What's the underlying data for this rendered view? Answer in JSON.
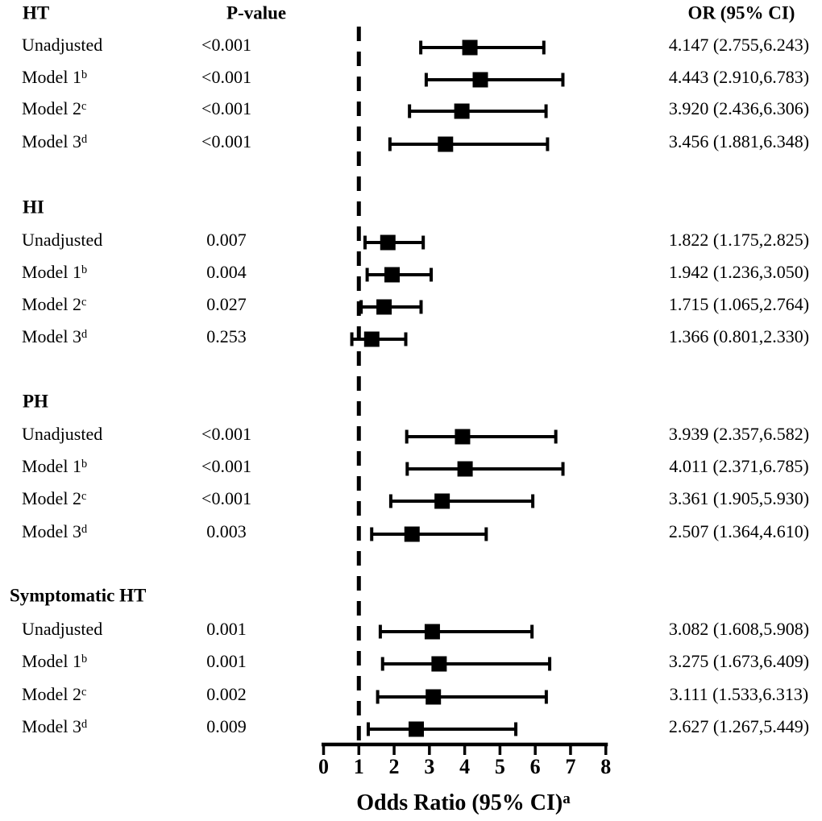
{
  "chart_data": {
    "type": "forest",
    "title": "",
    "columns": {
      "pvalue": "P-value",
      "or": "OR (95% CI)"
    },
    "xlabel": "Odds Ratio (95% CI)",
    "xlabel_sup": "a",
    "x_ticks": [
      "0",
      "1",
      "2",
      "3",
      "4",
      "5",
      "6",
      "7",
      "8"
    ],
    "xlim": [
      0,
      8
    ],
    "reference_line": 1,
    "colors": {
      "foreground": "#000000",
      "background": "#ffffff"
    },
    "sections": [
      {
        "name": "HT",
        "rows": [
          {
            "label": "Unadjusted",
            "sup": "",
            "p": "<0.001",
            "or": 4.147,
            "ci_low": 2.755,
            "ci_high": 6.243,
            "or_text": "4.147 (2.755,6.243)"
          },
          {
            "label": "Model 1",
            "sup": "b",
            "p": "<0.001",
            "or": 4.443,
            "ci_low": 2.91,
            "ci_high": 6.783,
            "or_text": "4.443 (2.910,6.783)"
          },
          {
            "label": "Model 2",
            "sup": "c",
            "p": "<0.001",
            "or": 3.92,
            "ci_low": 2.436,
            "ci_high": 6.306,
            "or_text": "3.920 (2.436,6.306)"
          },
          {
            "label": "Model 3",
            "sup": "d",
            "p": "<0.001",
            "or": 3.456,
            "ci_low": 1.881,
            "ci_high": 6.348,
            "or_text": "3.456 (1.881,6.348)"
          }
        ]
      },
      {
        "name": "HI",
        "rows": [
          {
            "label": "Unadjusted",
            "sup": "",
            "p": "0.007",
            "or": 1.822,
            "ci_low": 1.175,
            "ci_high": 2.825,
            "or_text": "1.822 (1.175,2.825)"
          },
          {
            "label": "Model 1",
            "sup": "b",
            "p": "0.004",
            "or": 1.942,
            "ci_low": 1.236,
            "ci_high": 3.05,
            "or_text": "1.942 (1.236,3.050)"
          },
          {
            "label": "Model 2",
            "sup": "c",
            "p": "0.027",
            "or": 1.715,
            "ci_low": 1.065,
            "ci_high": 2.764,
            "or_text": "1.715 (1.065,2.764)"
          },
          {
            "label": "Model 3",
            "sup": "d",
            "p": "0.253",
            "or": 1.366,
            "ci_low": 0.801,
            "ci_high": 2.33,
            "or_text": "1.366 (0.801,2.330)"
          }
        ]
      },
      {
        "name": "PH",
        "rows": [
          {
            "label": "Unadjusted",
            "sup": "",
            "p": "<0.001",
            "or": 3.939,
            "ci_low": 2.357,
            "ci_high": 6.582,
            "or_text": "3.939 (2.357,6.582)"
          },
          {
            "label": "Model 1",
            "sup": "b",
            "p": "<0.001",
            "or": 4.011,
            "ci_low": 2.371,
            "ci_high": 6.785,
            "or_text": "4.011 (2.371,6.785)"
          },
          {
            "label": "Model 2",
            "sup": "c",
            "p": "<0.001",
            "or": 3.361,
            "ci_low": 1.905,
            "ci_high": 5.93,
            "or_text": "3.361 (1.905,5.930)"
          },
          {
            "label": "Model 3",
            "sup": "d",
            "p": "0.003",
            "or": 2.507,
            "ci_low": 1.364,
            "ci_high": 4.61,
            "or_text": "2.507 (1.364,4.610)"
          }
        ]
      },
      {
        "name": "Symptomatic HT",
        "rows": [
          {
            "label": "Unadjusted",
            "sup": "",
            "p": "0.001",
            "or": 3.082,
            "ci_low": 1.608,
            "ci_high": 5.908,
            "or_text": "3.082 (1.608,5.908)"
          },
          {
            "label": "Model 1",
            "sup": "b",
            "p": "0.001",
            "or": 3.275,
            "ci_low": 1.673,
            "ci_high": 6.409,
            "or_text": "3.275 (1.673,6.409)"
          },
          {
            "label": "Model 2",
            "sup": "c",
            "p": "0.002",
            "or": 3.111,
            "ci_low": 1.533,
            "ci_high": 6.313,
            "or_text": "3.111 (1.533,6.313)"
          },
          {
            "label": "Model 3",
            "sup": "d",
            "p": "0.009",
            "or": 2.627,
            "ci_low": 1.267,
            "ci_high": 5.449,
            "or_text": "2.627 (1.267,5.449)"
          }
        ]
      }
    ]
  }
}
